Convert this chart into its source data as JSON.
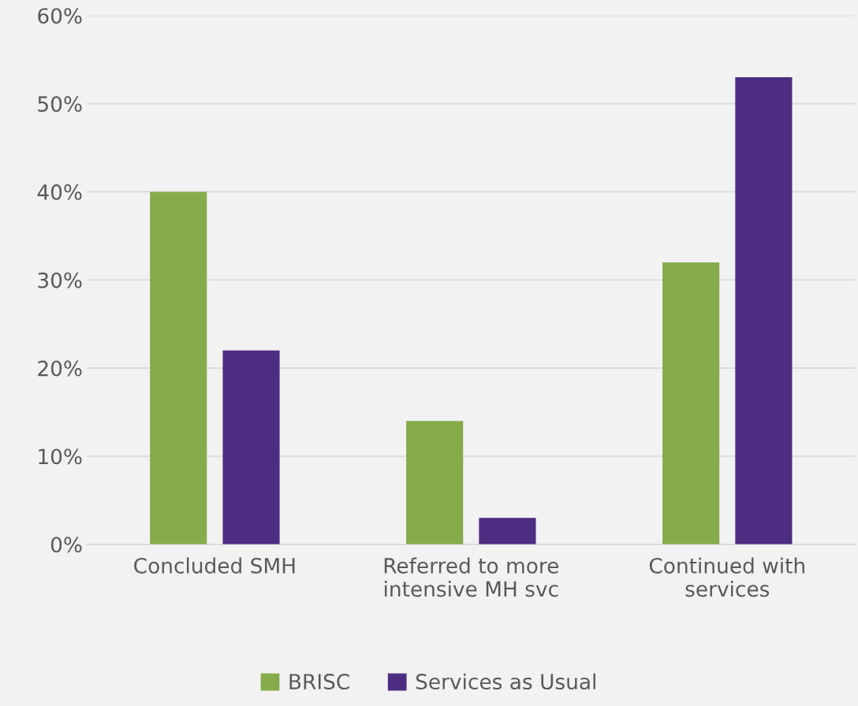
{
  "chart_data": {
    "type": "bar",
    "categories": [
      "Concluded SMH",
      "Referred to more\nintensive MH svc",
      "Continued with\nservices"
    ],
    "series": [
      {
        "name": "BRISC",
        "color": "#86ab4b",
        "values": [
          40,
          14,
          32
        ]
      },
      {
        "name": "Services as Usual",
        "color": "#4d2d82",
        "values": [
          22,
          3,
          53
        ]
      }
    ],
    "ylim": [
      0,
      60
    ],
    "yticks": [
      {
        "value": 0,
        "label": "0%"
      },
      {
        "value": 10,
        "label": "10%"
      },
      {
        "value": 20,
        "label": "20%"
      },
      {
        "value": 30,
        "label": "30%"
      },
      {
        "value": 40,
        "label": "40%"
      },
      {
        "value": 50,
        "label": "50%"
      },
      {
        "value": 60,
        "label": "60%"
      }
    ],
    "grid": "y",
    "legend": "bottom"
  }
}
